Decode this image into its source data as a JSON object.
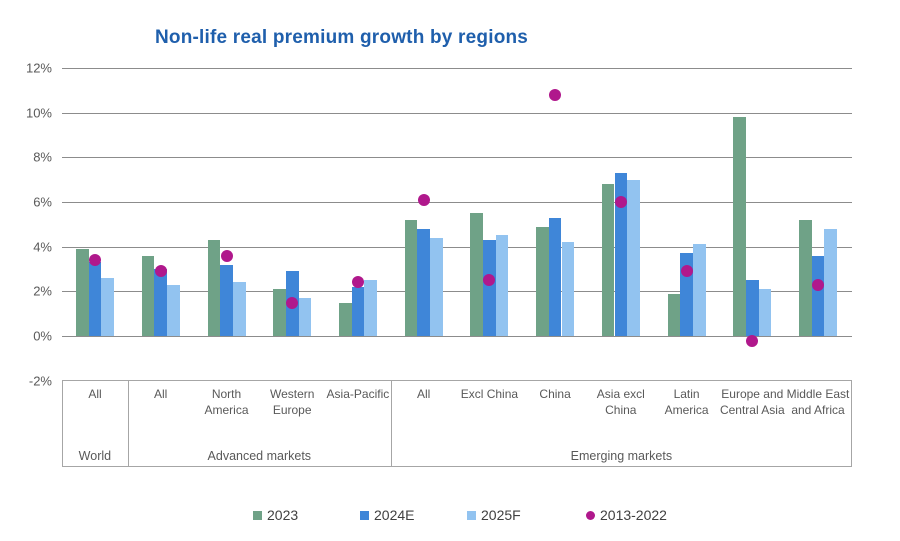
{
  "title": "Non-life real premium growth by regions",
  "colors": {
    "title_text": "#1F5FAC",
    "gridline": "#8C8C8C",
    "axis_text": "#595959",
    "box_border": "#A6A6A6",
    "legend_text": "#404040"
  },
  "chart_data": {
    "type": "bar",
    "title": "Non-life real premium growth by regions",
    "xlabel": "",
    "ylabel": "",
    "ylim": [
      -2,
      12
    ],
    "y_ticks": [
      12,
      10,
      8,
      6,
      4,
      2,
      0,
      -2
    ],
    "y_tick_suffix": "%",
    "grid": true,
    "legend_position": "bottom",
    "categories": [
      "All",
      "All",
      "North America",
      "Western Europe",
      "Asia-Pacific",
      "All",
      "Excl China",
      "China",
      "Asia excl China",
      "Latin America",
      "Europe and Central Asia",
      "Middle East and Africa"
    ],
    "sections": [
      {
        "label": "World",
        "from": 0,
        "to": 0
      },
      {
        "label": "Advanced markets",
        "from": 1,
        "to": 4
      },
      {
        "label": "Emerging markets",
        "from": 5,
        "to": 11
      }
    ],
    "series": [
      {
        "name": "2023",
        "type": "bar",
        "color": "#6FA287",
        "values": [
          3.9,
          3.6,
          4.3,
          2.1,
          1.5,
          5.2,
          5.5,
          4.9,
          6.8,
          1.9,
          9.8,
          5.2
        ]
      },
      {
        "name": "2024E",
        "type": "bar",
        "color": "#3F86D8",
        "values": [
          3.3,
          3.0,
          3.2,
          2.9,
          2.2,
          4.8,
          4.3,
          5.3,
          7.3,
          3.7,
          2.5,
          3.6
        ]
      },
      {
        "name": "2025F",
        "type": "bar",
        "color": "#92C3F0",
        "values": [
          2.6,
          2.3,
          2.4,
          1.7,
          2.5,
          4.4,
          4.5,
          4.2,
          7.0,
          4.1,
          2.1,
          4.8
        ]
      },
      {
        "name": "2013-2022",
        "type": "scatter",
        "color": "#B0188C",
        "values": [
          3.4,
          2.9,
          3.6,
          1.5,
          2.4,
          6.1,
          2.5,
          10.8,
          6.0,
          2.9,
          -0.2,
          2.3
        ]
      }
    ]
  }
}
